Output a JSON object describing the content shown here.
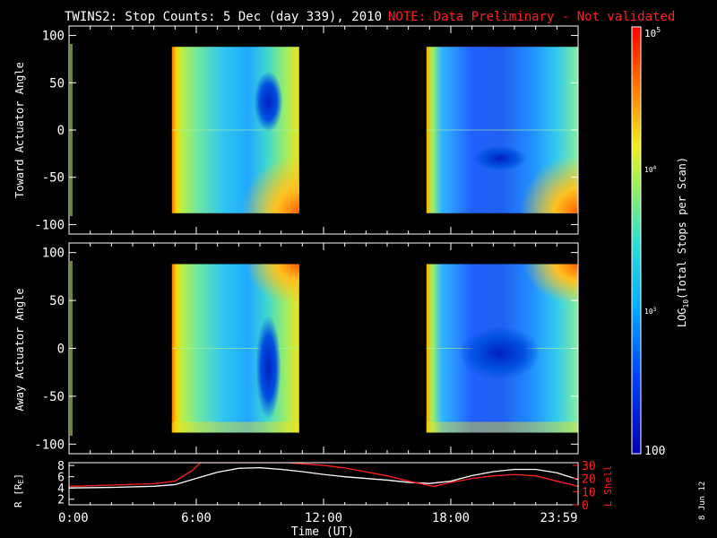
{
  "header": {
    "title": "TWINS2: Stop Counts:  5 Dec (day 339), 2010",
    "note": "NOTE: Data Preliminary - Not validated"
  },
  "footer": {
    "date_stamp": "8 Jun 12"
  },
  "colors": {
    "background": "#000000",
    "axes": "#ffffff",
    "note": "#ff2020",
    "l_shell_line": "#ff2020",
    "r_line": "#ffffff"
  },
  "chart_data": [
    {
      "type": "heatmap",
      "name": "toward",
      "ylabel": "Toward Actuator Angle",
      "ylim": [
        -110,
        110
      ],
      "yticks": [
        100,
        50,
        0,
        -50,
        -100
      ],
      "ytick_labels": [
        "100",
        "50",
        "0",
        "-50",
        "-100"
      ],
      "xlim": [
        0,
        24
      ],
      "y_extent": [
        -88,
        88
      ],
      "data_intervals": [
        [
          4.85,
          10.85
        ],
        [
          16.85,
          23.99
        ]
      ],
      "blue_minima_hours": [
        [
          9.0,
          9.8
        ],
        [
          19.5,
          21.5
        ]
      ]
    },
    {
      "type": "heatmap",
      "name": "away",
      "ylabel": "Away Actuator Angle",
      "ylim": [
        -110,
        110
      ],
      "yticks": [
        100,
        50,
        0,
        -50,
        -100
      ],
      "ytick_labels": [
        "100",
        "50",
        "0",
        "-50",
        "-100"
      ],
      "xlim": [
        0,
        24
      ],
      "y_extent": [
        -88,
        88
      ],
      "data_intervals": [
        [
          4.85,
          10.85
        ],
        [
          16.85,
          23.99
        ]
      ]
    },
    {
      "type": "line",
      "name": "orbit",
      "xlabel": "Time (UT)",
      "xlim": [
        0,
        24
      ],
      "xticks": [
        0,
        6,
        12,
        18,
        23.983
      ],
      "xtick_labels": [
        "0:00",
        "6:00",
        "12:00",
        "18:00",
        "23:59"
      ],
      "ylabel_left": "R [R",
      "ylabel_left_sub": "E",
      "ylabel_left_end": "]",
      "ylim_left": [
        1,
        8.5
      ],
      "yticks_left": [
        2,
        4,
        6,
        8
      ],
      "ytick_labels_left": [
        "2",
        "4",
        "6",
        "8"
      ],
      "ylabel_right": "L Shell",
      "ylim_right": [
        0,
        32
      ],
      "yticks_right": [
        0,
        10,
        20,
        30
      ],
      "ytick_labels_right": [
        "0",
        "10",
        "20",
        "30"
      ],
      "series": [
        {
          "axis": "left",
          "x": [
            0,
            2,
            4,
            5,
            6,
            7,
            8,
            9,
            10,
            11,
            12,
            13,
            14,
            15,
            16,
            17,
            18,
            19,
            20,
            21,
            22,
            23,
            24
          ],
          "y": [
            4.0,
            4.1,
            4.3,
            4.6,
            5.7,
            6.8,
            7.5,
            7.6,
            7.3,
            6.9,
            6.4,
            6.0,
            5.7,
            5.4,
            5.0,
            4.8,
            5.2,
            6.2,
            6.9,
            7.3,
            7.3,
            6.7,
            5.5
          ]
        },
        {
          "axis": "right",
          "x": [
            0,
            2,
            4,
            5,
            5.8,
            6.2,
            10.3,
            12,
            13,
            14,
            15,
            16,
            17.2,
            18,
            19,
            20,
            21,
            22,
            23,
            24
          ],
          "y": [
            14,
            15,
            16,
            18,
            26,
            32,
            32,
            30,
            28,
            25,
            22,
            18,
            14,
            17,
            20,
            22,
            23,
            22,
            18,
            14
          ]
        }
      ]
    }
  ],
  "colorbar": {
    "label_pre": "LOG",
    "label_sub": "10",
    "label_post": "(Total Stops per Scan)",
    "range": [
      100,
      100000
    ],
    "top_label_base": "10",
    "top_label_exp": "5",
    "mid_label_1_base": "10",
    "mid_label_1_exp": "4",
    "mid_label_2_base": "10",
    "mid_label_2_exp": "3",
    "bottom_label": "100"
  }
}
